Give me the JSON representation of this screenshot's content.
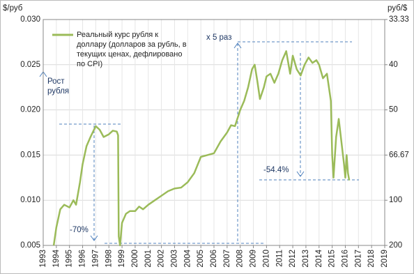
{
  "chart_data": {
    "type": "line",
    "y_label": "$/руб",
    "y2_label": "руб/$",
    "annotations": [
      "Рост рубля",
      "x 5 раз",
      "-70%",
      "-54.4%"
    ],
    "x": [
      1993.8,
      1994.0,
      1994.3,
      1994.6,
      1995.0,
      1995.3,
      1995.5,
      1995.8,
      1996.0,
      1996.3,
      1996.6,
      1997.0,
      1997.3,
      1997.6,
      1998.0,
      1998.3,
      1998.6,
      1998.7,
      1998.75,
      1998.85,
      1999.0,
      1999.3,
      1999.6,
      2000.0,
      2000.3,
      2000.6,
      2001.0,
      2001.5,
      2002.0,
      2002.5,
      2003.0,
      2003.5,
      2004.0,
      2004.5,
      2005.0,
      2005.5,
      2006.0,
      2006.5,
      2007.0,
      2007.3,
      2007.6,
      2008.0,
      2008.3,
      2008.6,
      2008.9,
      2009.1,
      2009.3,
      2009.5,
      2009.8,
      2010.0,
      2010.3,
      2010.6,
      2010.9,
      2011.2,
      2011.5,
      2011.8,
      2012.0,
      2012.3,
      2012.6,
      2012.9,
      2013.2,
      2013.5,
      2013.8,
      2014.0,
      2014.3,
      2014.6,
      2014.9,
      2015.0,
      2015.1,
      2015.3,
      2015.5,
      2015.7,
      2015.9,
      2016.0,
      2016.1,
      2016.2,
      2016.3
    ],
    "series": [
      {
        "name": "Реальный курс рубля к доллару (долларов за рубль, в текущих ценах, дефлировано по CPI)",
        "color": "#9bbb59",
        "values": [
          0.005,
          0.007,
          0.009,
          0.0095,
          0.0092,
          0.01,
          0.0095,
          0.012,
          0.014,
          0.016,
          0.017,
          0.0182,
          0.0178,
          0.017,
          0.0173,
          0.0177,
          0.0176,
          0.0172,
          0.006,
          0.005,
          0.0075,
          0.0085,
          0.0088,
          0.0088,
          0.0093,
          0.009,
          0.0095,
          0.01,
          0.0105,
          0.011,
          0.0113,
          0.0114,
          0.012,
          0.013,
          0.0148,
          0.015,
          0.0152,
          0.0165,
          0.0175,
          0.0183,
          0.0182,
          0.02,
          0.021,
          0.0225,
          0.0245,
          0.025,
          0.0232,
          0.0212,
          0.0225,
          0.0237,
          0.024,
          0.023,
          0.024,
          0.0255,
          0.0265,
          0.024,
          0.026,
          0.0245,
          0.0238,
          0.025,
          0.0258,
          0.0252,
          0.0255,
          0.025,
          0.0235,
          0.024,
          0.021,
          0.015,
          0.0125,
          0.017,
          0.019,
          0.0165,
          0.014,
          0.0125,
          0.015,
          0.013,
          0.0122
        ]
      }
    ],
    "xlim": [
      1993,
      2019
    ],
    "xticks": [
      1993,
      1994,
      1995,
      1996,
      1997,
      1998,
      1999,
      2000,
      2001,
      2002,
      2003,
      2004,
      2005,
      2006,
      2007,
      2008,
      2009,
      2010,
      2011,
      2012,
      2013,
      2014,
      2015,
      2016,
      2017,
      2018,
      2019
    ],
    "ylim": [
      0.005,
      0.03
    ],
    "yticks": [
      {
        "value": 0.005,
        "label": "0.005"
      },
      {
        "value": 0.01,
        "label": "0.010"
      },
      {
        "value": 0.015,
        "label": "0.015"
      },
      {
        "value": 0.02,
        "label": "0.020"
      },
      {
        "value": 0.025,
        "label": "0.025"
      },
      {
        "value": 0.03,
        "label": "0.030"
      }
    ],
    "y2scale": "reciprocal",
    "y2lim": [
      200,
      33.33
    ],
    "y2ticks": [
      200,
      100,
      66.67,
      50,
      40,
      33.33
    ],
    "grid": true
  }
}
